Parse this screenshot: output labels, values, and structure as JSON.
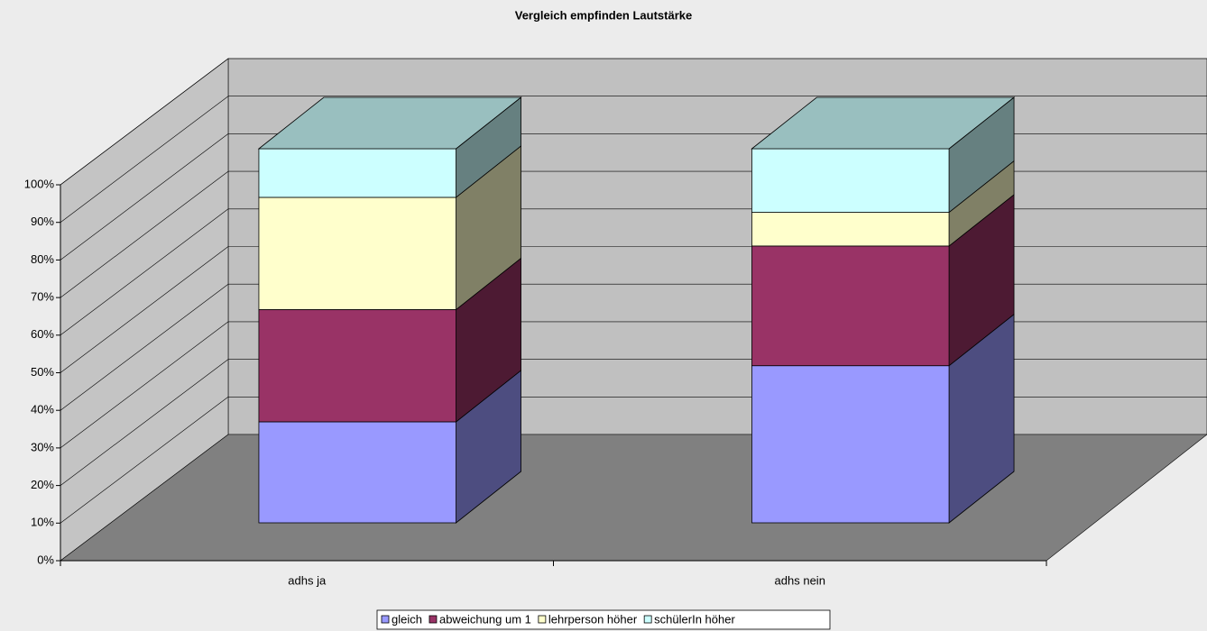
{
  "chart_data": {
    "type": "bar3d_stacked",
    "title": "Vergleich empfinden Lautstärke",
    "categories": [
      "adhs ja",
      "adhs nein"
    ],
    "series": [
      {
        "name": "gleich",
        "color": "#9999ff",
        "values": [
          27,
          42
        ]
      },
      {
        "name": "abweichung um 1",
        "color": "#993366",
        "values": [
          30,
          32
        ]
      },
      {
        "name": "lehrperson höher",
        "color": "#ffffcc",
        "values": [
          30,
          9
        ]
      },
      {
        "name": "schülerIn höher",
        "color": "#ccffff",
        "values": [
          13,
          17
        ]
      }
    ],
    "ylim": [
      0,
      100
    ],
    "yticks": [
      {
        "value": 0,
        "label": "0%"
      },
      {
        "value": 10,
        "label": "10%"
      },
      {
        "value": 20,
        "label": "20%"
      },
      {
        "value": 30,
        "label": "30%"
      },
      {
        "value": 40,
        "label": "40%"
      },
      {
        "value": 50,
        "label": "50%"
      },
      {
        "value": 60,
        "label": "60%"
      },
      {
        "value": 70,
        "label": "70%"
      },
      {
        "value": 80,
        "label": "80%"
      },
      {
        "value": 90,
        "label": "90%"
      },
      {
        "value": 100,
        "label": "100%"
      }
    ],
    "grid": true,
    "legend": "bottom"
  }
}
